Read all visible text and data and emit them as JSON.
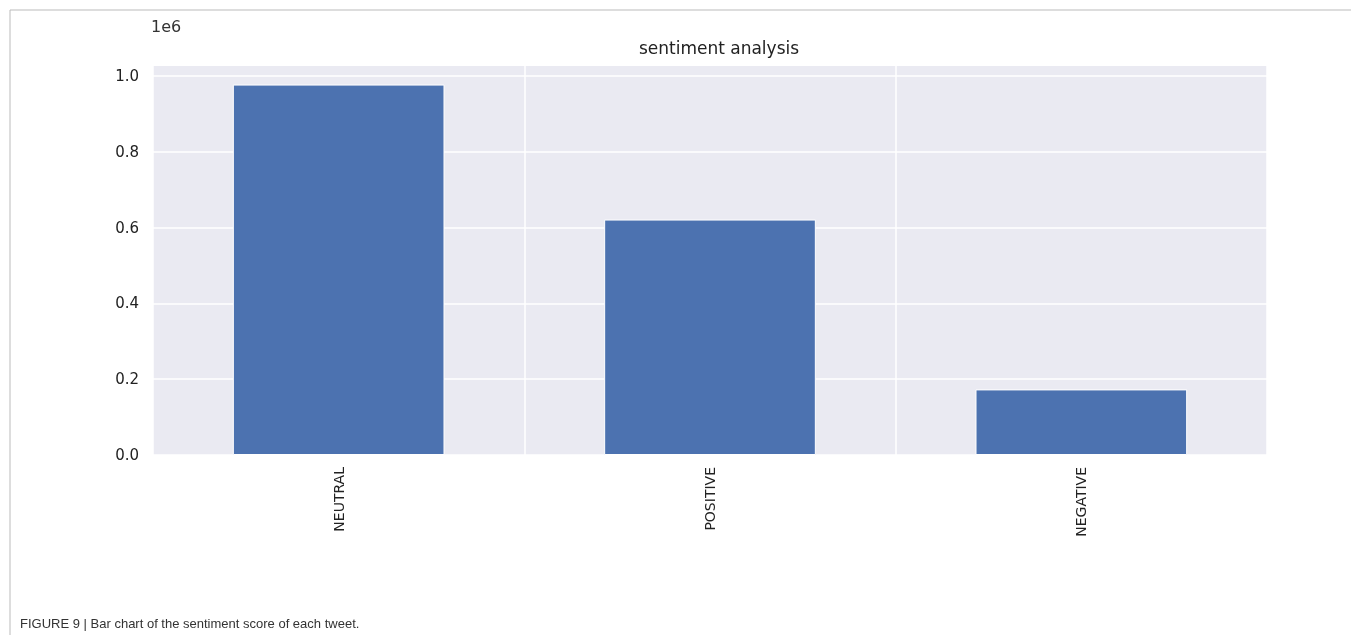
{
  "chart_data": {
    "type": "bar",
    "title": "sentiment analysis",
    "categories": [
      "NEUTRAL",
      "POSITIVE",
      "NEGATIVE"
    ],
    "values": [
      0.977,
      0.621,
      0.173
    ],
    "color": "#4c72b0",
    "ylim": [
      0,
      1.026
    ],
    "yticks": [
      {
        "value": 0,
        "label": "0.0"
      },
      {
        "value": 0.2,
        "label": "0.2"
      },
      {
        "value": 0.4,
        "label": "0.4"
      },
      {
        "value": 0.6,
        "label": "0.6"
      },
      {
        "value": 0.8,
        "label": "0.8"
      },
      {
        "value": 1,
        "label": "1.0"
      }
    ],
    "grid": true,
    "annotations": [
      "1e6",
      "FIGURE 9 | Bar chart of the sentiment score of each tweet."
    ]
  }
}
